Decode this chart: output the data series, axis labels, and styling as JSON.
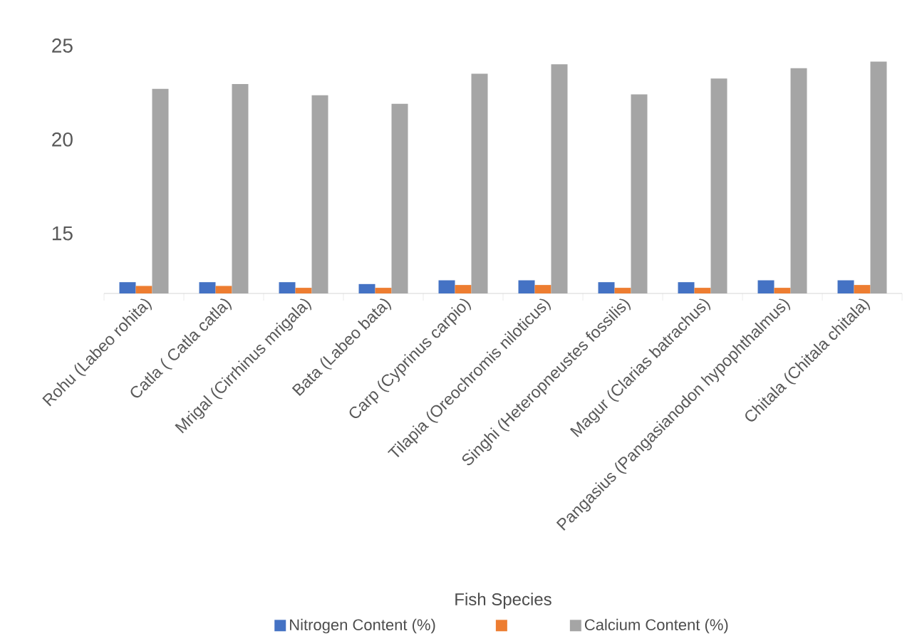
{
  "chart_data": {
    "type": "bar",
    "xlabel": "Fish Species",
    "categories": [
      "Rohu (Labeo rohita)",
      "Catla ( Catla catla)",
      "Mrigal (Cirrhinus mrigala)",
      "Bata (Labeo bata)",
      "Carp (Cyprinus carpio)",
      "Tilapia (Oreochromis niloticus)",
      "Singhi (Heteropneustes fossilis)",
      "Magur (Clarias batrachus)",
      "Pangasius (Pangasianodon hypophthalmus)",
      "Chitala (Chitala chitala)"
    ],
    "series": [
      {
        "name": "Nitrogen Content (%)",
        "color": "#4472c4",
        "values": [
          12.4,
          12.4,
          12.4,
          12.3,
          12.5,
          12.5,
          12.4,
          12.4,
          12.5,
          12.5
        ]
      },
      {
        "color": "#ed7d31",
        "values": [
          12.2,
          12.2,
          12.1,
          12.1,
          12.25,
          12.25,
          12.1,
          12.1,
          12.1,
          12.25
        ]
      },
      {
        "name": "Calcium Content (%)",
        "color": "#a5a5a5",
        "values": [
          22.7,
          22.95,
          22.35,
          21.9,
          23.5,
          24.0,
          22.4,
          23.25,
          23.8,
          24.15
        ]
      }
    ],
    "ylim": [
      11.8,
      25
    ],
    "yticks": [
      15,
      20,
      25
    ],
    "legend": "bottom"
  }
}
